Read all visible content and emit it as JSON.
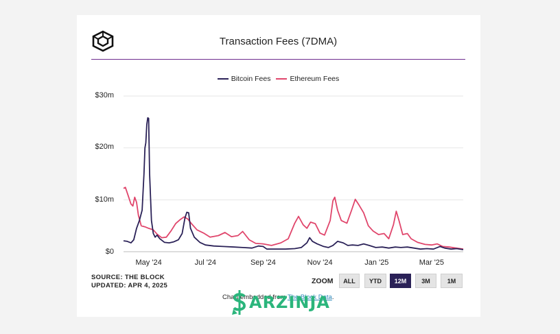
{
  "header": {
    "title": "Transaction Fees (7DMA)",
    "logo_icon": "the-block-cube-logo"
  },
  "footer": {
    "source_line": "SOURCE: THE BLOCK",
    "updated_line": "UPDATED: APR 4, 2025",
    "credit_prefix": "Chart embedded from ",
    "credit_link": "The Block Data",
    "credit_suffix": "."
  },
  "zoom": {
    "label": "ZOOM",
    "options": [
      "ALL",
      "YTD",
      "12M",
      "3M",
      "1M"
    ],
    "selected": "12M"
  },
  "watermark": {
    "text": "ARZINJA",
    "color": "#2bb57c"
  },
  "colors": {
    "accent_rule": "#6e2b8f",
    "bitcoin": "#2a2157",
    "ethereum": "#e0456b",
    "zoom_active": "#2a2157"
  },
  "chart_data": {
    "type": "line",
    "title": "Transaction Fees (7DMA)",
    "xlabel": "",
    "ylabel": "",
    "ylim": [
      0,
      30000000
    ],
    "xlim": [
      "2024-04-04",
      "2025-04-04"
    ],
    "grid": true,
    "legend": "top-center",
    "y_ticks": [
      {
        "value": 0,
        "label": "$0"
      },
      {
        "value": 10000000,
        "label": "$10m"
      },
      {
        "value": 20000000,
        "label": "$20m"
      },
      {
        "value": 30000000,
        "label": "$30m"
      }
    ],
    "x_ticks": [
      {
        "date": "2024-05-01",
        "label": "May '24"
      },
      {
        "date": "2024-07-01",
        "label": "Jul '24"
      },
      {
        "date": "2024-09-01",
        "label": "Sep '24"
      },
      {
        "date": "2024-11-01",
        "label": "Nov '24"
      },
      {
        "date": "2025-01-01",
        "label": "Jan '25"
      },
      {
        "date": "2025-03-01",
        "label": "Mar '25"
      }
    ],
    "series": [
      {
        "name": "Bitcoin Fees",
        "color": "#2a2157",
        "points": [
          [
            "2024-04-04",
            2100000
          ],
          [
            "2024-04-08",
            2000000
          ],
          [
            "2024-04-12",
            1700000
          ],
          [
            "2024-04-15",
            2300000
          ],
          [
            "2024-04-18",
            4500000
          ],
          [
            "2024-04-21",
            6000000
          ],
          [
            "2024-04-24",
            8000000
          ],
          [
            "2024-04-26",
            15000000
          ],
          [
            "2024-04-27",
            20000000
          ],
          [
            "2024-04-28",
            21000000
          ],
          [
            "2024-04-29",
            24500000
          ],
          [
            "2024-04-30",
            25800000
          ],
          [
            "2024-05-01",
            25700000
          ],
          [
            "2024-05-02",
            15000000
          ],
          [
            "2024-05-04",
            6000000
          ],
          [
            "2024-05-06",
            3500000
          ],
          [
            "2024-05-08",
            2800000
          ],
          [
            "2024-05-10",
            3200000
          ],
          [
            "2024-05-13",
            2500000
          ],
          [
            "2024-05-18",
            1800000
          ],
          [
            "2024-05-23",
            1700000
          ],
          [
            "2024-05-28",
            1900000
          ],
          [
            "2024-06-02",
            2300000
          ],
          [
            "2024-06-06",
            3500000
          ],
          [
            "2024-06-09",
            6500000
          ],
          [
            "2024-06-11",
            7600000
          ],
          [
            "2024-06-13",
            7500000
          ],
          [
            "2024-06-15",
            4500000
          ],
          [
            "2024-06-19",
            2800000
          ],
          [
            "2024-06-25",
            1800000
          ],
          [
            "2024-07-01",
            1300000
          ],
          [
            "2024-07-10",
            1100000
          ],
          [
            "2024-07-20",
            1000000
          ],
          [
            "2024-08-01",
            900000
          ],
          [
            "2024-08-10",
            800000
          ],
          [
            "2024-08-20",
            700000
          ],
          [
            "2024-08-27",
            1100000
          ],
          [
            "2024-09-01",
            1000000
          ],
          [
            "2024-09-05",
            500000
          ],
          [
            "2024-09-15",
            500000
          ],
          [
            "2024-09-25",
            500000
          ],
          [
            "2024-10-05",
            600000
          ],
          [
            "2024-10-12",
            800000
          ],
          [
            "2024-10-18",
            1700000
          ],
          [
            "2024-10-21",
            2700000
          ],
          [
            "2024-10-24",
            2000000
          ],
          [
            "2024-10-29",
            1500000
          ],
          [
            "2024-11-05",
            1000000
          ],
          [
            "2024-11-10",
            800000
          ],
          [
            "2024-11-15",
            1200000
          ],
          [
            "2024-11-20",
            2000000
          ],
          [
            "2024-11-26",
            1700000
          ],
          [
            "2024-12-01",
            1200000
          ],
          [
            "2024-12-06",
            1300000
          ],
          [
            "2024-12-12",
            1200000
          ],
          [
            "2024-12-18",
            1500000
          ],
          [
            "2024-12-24",
            1200000
          ],
          [
            "2024-12-31",
            800000
          ],
          [
            "2025-01-07",
            900000
          ],
          [
            "2025-01-14",
            700000
          ],
          [
            "2025-01-21",
            900000
          ],
          [
            "2025-01-27",
            800000
          ],
          [
            "2025-02-03",
            900000
          ],
          [
            "2025-02-10",
            700000
          ],
          [
            "2025-02-17",
            500000
          ],
          [
            "2025-02-24",
            600000
          ],
          [
            "2025-03-03",
            500000
          ],
          [
            "2025-03-10",
            1000000
          ],
          [
            "2025-03-15",
            700000
          ],
          [
            "2025-03-22",
            500000
          ],
          [
            "2025-03-28",
            600000
          ],
          [
            "2025-04-04",
            400000
          ]
        ]
      },
      {
        "name": "Ethereum Fees",
        "color": "#e0456b",
        "points": [
          [
            "2024-04-04",
            12200000
          ],
          [
            "2024-04-06",
            12400000
          ],
          [
            "2024-04-09",
            10800000
          ],
          [
            "2024-04-12",
            9200000
          ],
          [
            "2024-04-14",
            8800000
          ],
          [
            "2024-04-16",
            10500000
          ],
          [
            "2024-04-18",
            9500000
          ],
          [
            "2024-04-20",
            7000000
          ],
          [
            "2024-04-23",
            5000000
          ],
          [
            "2024-04-27",
            4800000
          ],
          [
            "2024-05-01",
            4500000
          ],
          [
            "2024-05-06",
            4200000
          ],
          [
            "2024-05-10",
            3400000
          ],
          [
            "2024-05-15",
            2700000
          ],
          [
            "2024-05-20",
            2800000
          ],
          [
            "2024-05-25",
            4000000
          ],
          [
            "2024-05-30",
            5400000
          ],
          [
            "2024-06-04",
            6200000
          ],
          [
            "2024-06-08",
            6700000
          ],
          [
            "2024-06-12",
            6300000
          ],
          [
            "2024-06-16",
            5400000
          ],
          [
            "2024-06-22",
            4200000
          ],
          [
            "2024-06-29",
            3600000
          ],
          [
            "2024-07-06",
            2800000
          ],
          [
            "2024-07-15",
            3100000
          ],
          [
            "2024-07-22",
            3700000
          ],
          [
            "2024-07-29",
            2900000
          ],
          [
            "2024-08-05",
            3100000
          ],
          [
            "2024-08-10",
            3900000
          ],
          [
            "2024-08-17",
            2300000
          ],
          [
            "2024-08-24",
            1600000
          ],
          [
            "2024-09-01",
            1500000
          ],
          [
            "2024-09-10",
            1200000
          ],
          [
            "2024-09-20",
            1700000
          ],
          [
            "2024-09-28",
            2500000
          ],
          [
            "2024-10-05",
            5500000
          ],
          [
            "2024-10-09",
            6800000
          ],
          [
            "2024-10-14",
            5200000
          ],
          [
            "2024-10-18",
            4500000
          ],
          [
            "2024-10-22",
            5700000
          ],
          [
            "2024-10-27",
            5400000
          ],
          [
            "2024-11-01",
            3600000
          ],
          [
            "2024-11-06",
            3200000
          ],
          [
            "2024-11-12",
            6000000
          ],
          [
            "2024-11-15",
            9800000
          ],
          [
            "2024-11-17",
            10500000
          ],
          [
            "2024-11-20",
            8000000
          ],
          [
            "2024-11-24",
            6000000
          ],
          [
            "2024-11-30",
            5500000
          ],
          [
            "2024-12-05",
            8000000
          ],
          [
            "2024-12-09",
            10100000
          ],
          [
            "2024-12-13",
            9000000
          ],
          [
            "2024-12-18",
            7500000
          ],
          [
            "2024-12-23",
            5000000
          ],
          [
            "2024-12-28",
            4000000
          ],
          [
            "2025-01-03",
            3300000
          ],
          [
            "2025-01-09",
            3500000
          ],
          [
            "2025-01-14",
            2500000
          ],
          [
            "2025-01-19",
            5200000
          ],
          [
            "2025-01-22",
            7800000
          ],
          [
            "2025-01-25",
            6000000
          ],
          [
            "2025-01-29",
            3300000
          ],
          [
            "2025-02-03",
            3500000
          ],
          [
            "2025-02-07",
            2500000
          ],
          [
            "2025-02-14",
            1800000
          ],
          [
            "2025-02-22",
            1400000
          ],
          [
            "2025-03-01",
            1300000
          ],
          [
            "2025-03-07",
            1500000
          ],
          [
            "2025-03-13",
            1000000
          ],
          [
            "2025-03-20",
            900000
          ],
          [
            "2025-03-27",
            700000
          ],
          [
            "2025-04-04",
            500000
          ]
        ]
      }
    ]
  }
}
